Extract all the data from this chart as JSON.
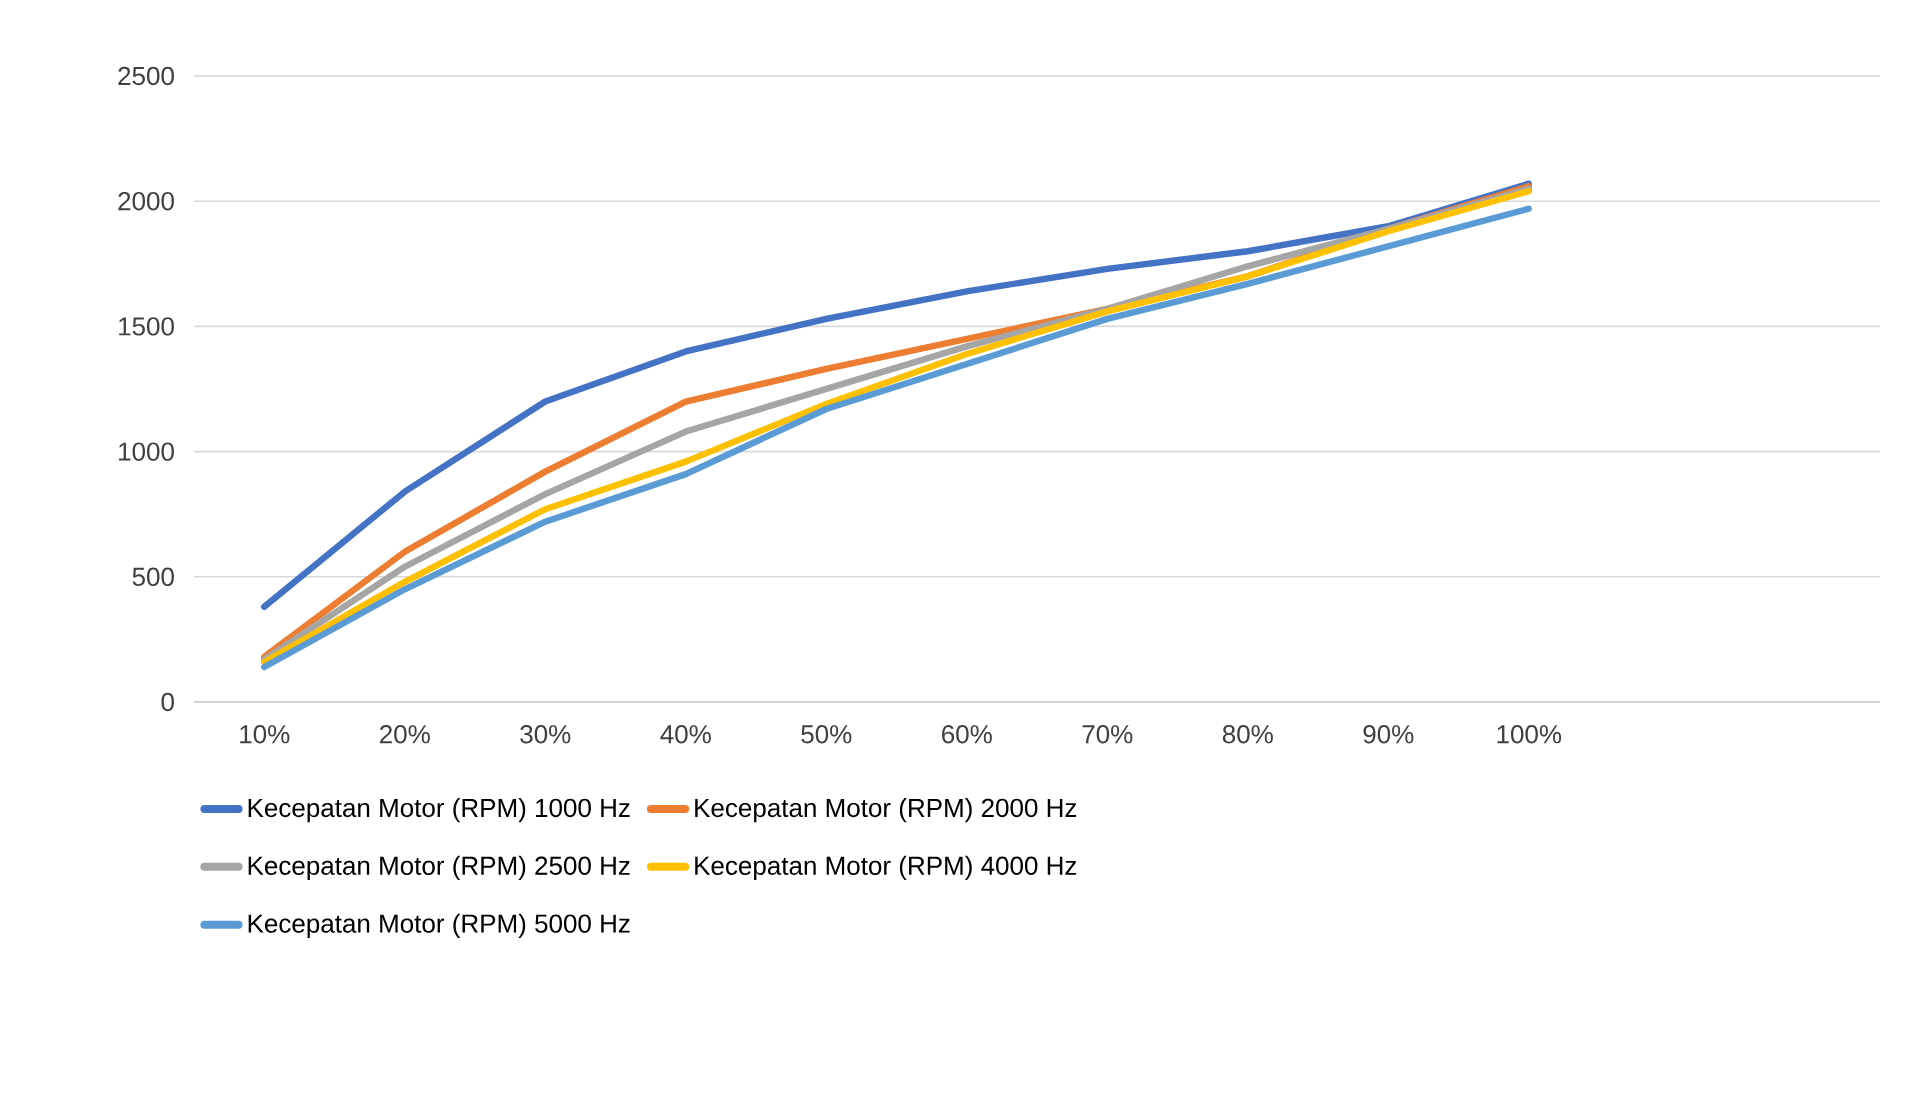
{
  "chart_data": {
    "type": "line",
    "categories": [
      "10%",
      "20%",
      "30%",
      "40%",
      "50%",
      "60%",
      "70%",
      "80%",
      "90%",
      "100%",
      null,
      null
    ],
    "ylim": [
      0,
      2500
    ],
    "yticks": [
      0,
      500,
      1000,
      1500,
      2000,
      2500
    ],
    "grid": "y",
    "legend": "bottom",
    "marker": "none",
    "line_style": "solid",
    "series": [
      {
        "name": "Kecepatan Motor (RPM) 1000 Hz",
        "color": "#4472c4",
        "values": [
          380,
          840,
          1200,
          1400,
          1530,
          1640,
          1730,
          1800,
          1900,
          2070,
          null,
          null
        ]
      },
      {
        "name": "Kecepatan Motor (RPM) 2000 Hz",
        "color": "#ed7d31",
        "values": [
          180,
          600,
          920,
          1200,
          1330,
          1450,
          1570,
          1700,
          1890,
          2060,
          null,
          null
        ]
      },
      {
        "name": "Kecepatan Motor (RPM) 2500 Hz",
        "color": "#a5a5a5",
        "values": [
          170,
          540,
          830,
          1080,
          1250,
          1420,
          1570,
          1740,
          1890,
          2050,
          null,
          null
        ]
      },
      {
        "name": "Kecepatan Motor (RPM) 4000 Hz",
        "color": "#ffc000",
        "values": [
          160,
          480,
          770,
          960,
          1190,
          1390,
          1560,
          1700,
          1880,
          2040,
          null,
          null
        ]
      },
      {
        "name": "Kecepatan Motor (RPM) 5000 Hz",
        "color": "#5b9bd5",
        "values": [
          140,
          450,
          720,
          910,
          1170,
          1350,
          1530,
          1670,
          1820,
          1970,
          null,
          null
        ]
      }
    ]
  }
}
